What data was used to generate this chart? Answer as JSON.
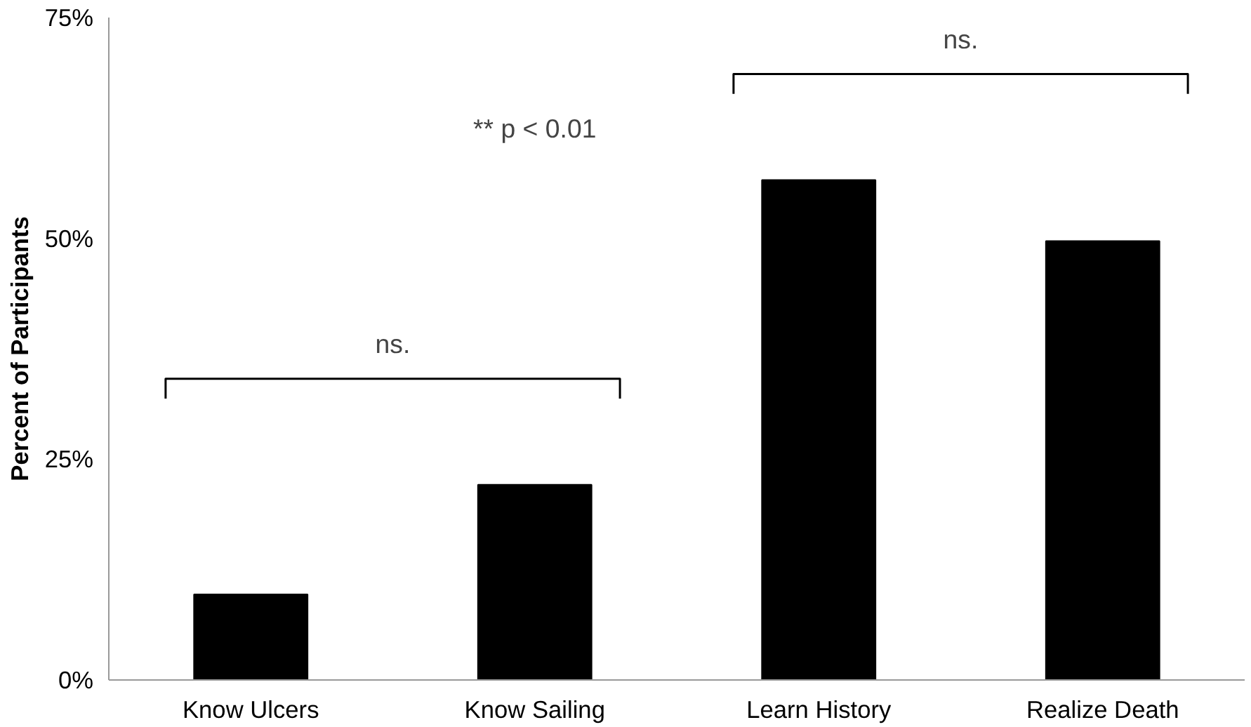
{
  "chart_data": {
    "type": "bar",
    "ylabel": "Percent of Participants",
    "categories": [
      "Know Ulcers",
      "Know Sailing",
      "Learn History",
      "Realize Death"
    ],
    "values": [
      9.7,
      22.1,
      56.6,
      49.7
    ],
    "color": "#000000",
    "ylim": [
      0,
      75
    ],
    "yticks": [
      {
        "value": 0,
        "label": "0%"
      },
      {
        "value": 25,
        "label": "25%"
      },
      {
        "value": 50,
        "label": "50%"
      },
      {
        "value": 75,
        "label": "75%"
      }
    ],
    "grid": false,
    "annotations": [
      "ns.",
      "ns.",
      "** p < 0.01"
    ]
  }
}
